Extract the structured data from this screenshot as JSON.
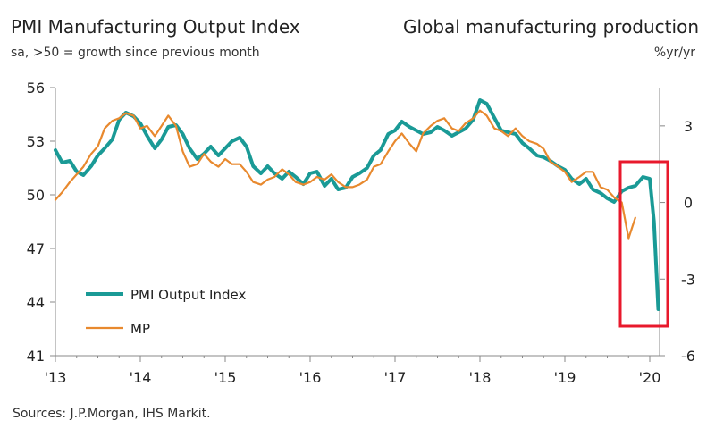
{
  "header": {
    "title_left": "PMI Manufacturing Output Index",
    "subtitle_left": "sa, >50 = growth since previous month",
    "title_right": "Global manufacturing production",
    "subtitle_right": "%yr/yr"
  },
  "footer": {
    "source": "Sources: J.P.Morgan, IHS Markit."
  },
  "colors": {
    "pmi": "#1a9a96",
    "mp": "#e8892e",
    "highlight": "#e8192c",
    "axis": "#888888"
  },
  "chart_data": {
    "type": "line",
    "grid": false,
    "legend_position": "bottom-left",
    "x_labels": [
      "'13",
      "'14",
      "'15",
      "'16",
      "'17",
      "'18",
      "'19",
      "'20"
    ],
    "xlim": [
      2013.0,
      2020.1
    ],
    "left_axis": {
      "ylim": [
        41,
        56
      ],
      "ticks": [
        "41",
        "44",
        "47",
        "50",
        "53",
        "56"
      ]
    },
    "right_axis": {
      "ylim": [
        -6,
        4.5
      ],
      "ticks": [
        "-6",
        "-3",
        "0",
        "3"
      ]
    },
    "series": [
      {
        "name": "PMI Output Index",
        "axis": "left",
        "x": [
          2013.0,
          2013.08,
          2013.17,
          2013.25,
          2013.33,
          2013.42,
          2013.5,
          2013.58,
          2013.67,
          2013.75,
          2013.83,
          2013.92,
          2014.0,
          2014.08,
          2014.17,
          2014.25,
          2014.33,
          2014.42,
          2014.5,
          2014.58,
          2014.67,
          2014.75,
          2014.83,
          2014.92,
          2015.0,
          2015.08,
          2015.17,
          2015.25,
          2015.33,
          2015.42,
          2015.5,
          2015.58,
          2015.67,
          2015.75,
          2015.83,
          2015.92,
          2016.0,
          2016.08,
          2016.17,
          2016.25,
          2016.33,
          2016.42,
          2016.5,
          2016.58,
          2016.67,
          2016.75,
          2016.83,
          2016.92,
          2017.0,
          2017.08,
          2017.17,
          2017.25,
          2017.33,
          2017.42,
          2017.5,
          2017.58,
          2017.67,
          2017.75,
          2017.83,
          2017.92,
          2018.0,
          2018.08,
          2018.17,
          2018.25,
          2018.33,
          2018.42,
          2018.5,
          2018.58,
          2018.67,
          2018.75,
          2018.83,
          2018.92,
          2019.0,
          2019.08,
          2019.17,
          2019.25,
          2019.33,
          2019.42,
          2019.5,
          2019.58,
          2019.67,
          2019.75,
          2019.83,
          2019.92,
          2020.0,
          2020.05,
          2020.1
        ],
        "y": [
          52.5,
          51.8,
          51.9,
          51.3,
          51.1,
          51.6,
          52.2,
          52.6,
          53.1,
          54.2,
          54.6,
          54.4,
          54.0,
          53.3,
          52.6,
          53.1,
          53.8,
          53.9,
          53.4,
          52.6,
          52.0,
          52.3,
          52.7,
          52.2,
          52.6,
          53.0,
          53.2,
          52.7,
          51.6,
          51.2,
          51.6,
          51.2,
          50.9,
          51.3,
          51.0,
          50.6,
          51.2,
          51.3,
          50.5,
          50.9,
          50.3,
          50.4,
          51.0,
          51.2,
          51.5,
          52.2,
          52.5,
          53.4,
          53.6,
          54.1,
          53.8,
          53.6,
          53.4,
          53.5,
          53.8,
          53.6,
          53.3,
          53.5,
          53.7,
          54.2,
          55.3,
          55.1,
          54.3,
          53.6,
          53.5,
          53.4,
          52.9,
          52.6,
          52.2,
          52.1,
          51.9,
          51.6,
          51.4,
          50.9,
          50.6,
          50.9,
          50.3,
          50.1,
          49.8,
          49.6,
          50.2,
          50.4,
          50.5,
          51.0,
          50.9,
          48.5,
          43.6
        ]
      },
      {
        "name": "MP",
        "axis": "right",
        "x": [
          2013.0,
          2013.08,
          2013.17,
          2013.25,
          2013.33,
          2013.42,
          2013.5,
          2013.58,
          2013.67,
          2013.75,
          2013.83,
          2013.92,
          2014.0,
          2014.08,
          2014.17,
          2014.25,
          2014.33,
          2014.42,
          2014.5,
          2014.58,
          2014.67,
          2014.75,
          2014.83,
          2014.92,
          2015.0,
          2015.08,
          2015.17,
          2015.25,
          2015.33,
          2015.42,
          2015.5,
          2015.58,
          2015.67,
          2015.75,
          2015.83,
          2015.92,
          2016.0,
          2016.08,
          2016.17,
          2016.25,
          2016.33,
          2016.42,
          2016.5,
          2016.58,
          2016.67,
          2016.75,
          2016.83,
          2016.92,
          2017.0,
          2017.08,
          2017.17,
          2017.25,
          2017.33,
          2017.42,
          2017.5,
          2017.58,
          2017.67,
          2017.75,
          2017.83,
          2017.92,
          2018.0,
          2018.08,
          2018.17,
          2018.25,
          2018.33,
          2018.42,
          2018.5,
          2018.58,
          2018.67,
          2018.75,
          2018.83,
          2018.92,
          2019.0,
          2019.08,
          2019.17,
          2019.25,
          2019.33,
          2019.42,
          2019.5,
          2019.58,
          2019.67,
          2019.75,
          2019.83
        ],
        "y": [
          0.1,
          0.4,
          0.8,
          1.1,
          1.4,
          1.9,
          2.2,
          2.9,
          3.2,
          3.3,
          3.5,
          3.4,
          2.9,
          3.0,
          2.6,
          3.0,
          3.4,
          3.0,
          2.0,
          1.4,
          1.5,
          1.9,
          1.6,
          1.4,
          1.7,
          1.5,
          1.5,
          1.2,
          0.8,
          0.7,
          0.9,
          1.0,
          1.3,
          1.1,
          0.8,
          0.7,
          0.8,
          1.0,
          0.9,
          1.1,
          0.8,
          0.6,
          0.6,
          0.7,
          0.9,
          1.4,
          1.5,
          2.0,
          2.4,
          2.7,
          2.3,
          2.0,
          2.7,
          3.0,
          3.2,
          3.3,
          2.9,
          2.8,
          3.1,
          3.3,
          3.6,
          3.4,
          2.9,
          2.8,
          2.6,
          2.9,
          2.6,
          2.4,
          2.3,
          2.1,
          1.6,
          1.4,
          1.2,
          0.8,
          1.0,
          1.2,
          1.2,
          0.6,
          0.5,
          0.2,
          0.0,
          -1.4,
          -0.6
        ]
      }
    ]
  }
}
